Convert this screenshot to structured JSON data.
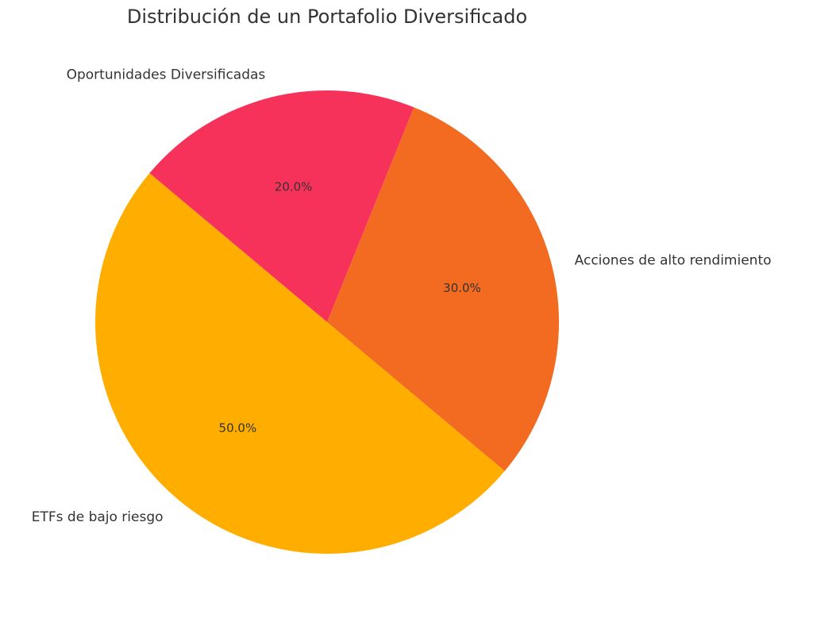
{
  "chart_data": {
    "type": "pie",
    "title": "Distribución de un Portafolio Diversificado",
    "categories": [
      "Acciones de alto rendimiento",
      "Oportunidades Diversificadas",
      "ETFs de bajo riesgo"
    ],
    "values": [
      30,
      20,
      50
    ],
    "value_labels": [
      "30.0%",
      "20.0%",
      "50.0%"
    ],
    "colors": [
      "#f26b21",
      "#f6325a",
      "#ffae00"
    ]
  }
}
